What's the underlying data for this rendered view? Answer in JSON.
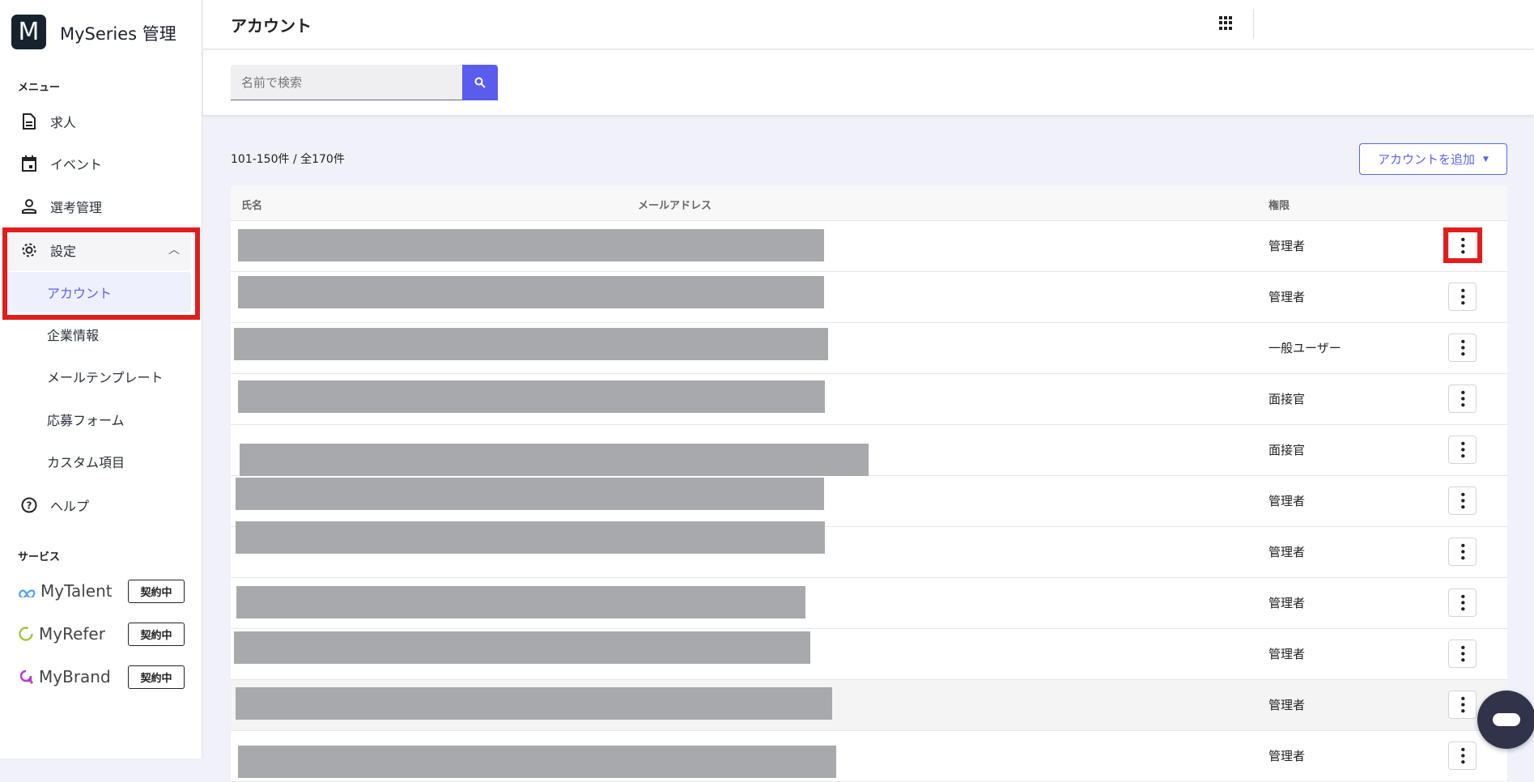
{
  "app": {
    "logo_letter": "M",
    "name": "MySeries 管理"
  },
  "sidebar": {
    "menu_label": "メニュー",
    "items": [
      {
        "label": "求人"
      },
      {
        "label": "イベント"
      },
      {
        "label": "選考管理"
      },
      {
        "label": "設定"
      },
      {
        "label": "ヘルプ"
      }
    ],
    "settings_sub": [
      {
        "label": "アカウント"
      },
      {
        "label": "企業情報"
      },
      {
        "label": "メールテンプレート"
      },
      {
        "label": "応募フォーム"
      },
      {
        "label": "カスタム項目"
      }
    ],
    "services_label": "サービス",
    "services": [
      {
        "name": "MyTalent",
        "status": "契約中"
      },
      {
        "name": "MyRefer",
        "status": "契約中"
      },
      {
        "name": "MyBrand",
        "status": "契約中"
      }
    ]
  },
  "header": {
    "title": "アカウント"
  },
  "search": {
    "placeholder": "名前で検索"
  },
  "list": {
    "count_text": "101-150件 / 全170件",
    "add_button": "アカウントを追加"
  },
  "table": {
    "columns": [
      "氏名",
      "メールアドレス",
      "権限"
    ],
    "rows": [
      {
        "role": "管理者"
      },
      {
        "role": "管理者"
      },
      {
        "role": "一般ユーザー"
      },
      {
        "role": "面接官"
      },
      {
        "role": "面接官"
      },
      {
        "role": "管理者"
      },
      {
        "role": "管理者"
      },
      {
        "role": "管理者"
      },
      {
        "role": "管理者"
      },
      {
        "role": "管理者"
      },
      {
        "role": "管理者"
      }
    ]
  },
  "colors": {
    "accent": "#5b63ec",
    "highlight": "#e21d1d"
  }
}
